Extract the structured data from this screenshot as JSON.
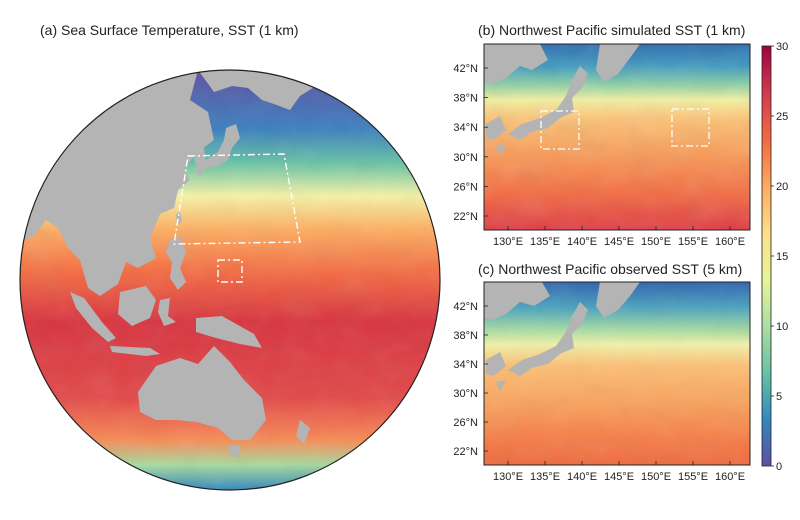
{
  "panels": {
    "globe": {
      "title": "(a) Sea Surface Temperature, SST (1 km)"
    },
    "map_b": {
      "title": "(b) Northwest Pacific simulated SST (1 km)"
    },
    "map_c": {
      "title": "(c) Northwest Pacific observed SST (5 km)"
    }
  },
  "axes": {
    "lat_ticks": [
      "42°N",
      "38°N",
      "34°N",
      "30°N",
      "26°N",
      "22°N"
    ],
    "lon_ticks": [
      "130°E",
      "135°E",
      "140°E",
      "145°E",
      "150°E",
      "155°E",
      "160°E"
    ]
  },
  "colorbar": {
    "range": [
      0,
      30
    ],
    "ticks": [
      "30",
      "25",
      "20",
      "15",
      "10",
      "5",
      "0"
    ]
  },
  "colors": {
    "land": "#b4b4b4",
    "dashed_box": "#ffffff",
    "scale": [
      "#5e4fa2",
      "#3288bd",
      "#66c2a5",
      "#abdda4",
      "#e6f598",
      "#fee08b",
      "#fdae61",
      "#f46d43",
      "#d53e4f",
      "#9e0142"
    ]
  }
}
